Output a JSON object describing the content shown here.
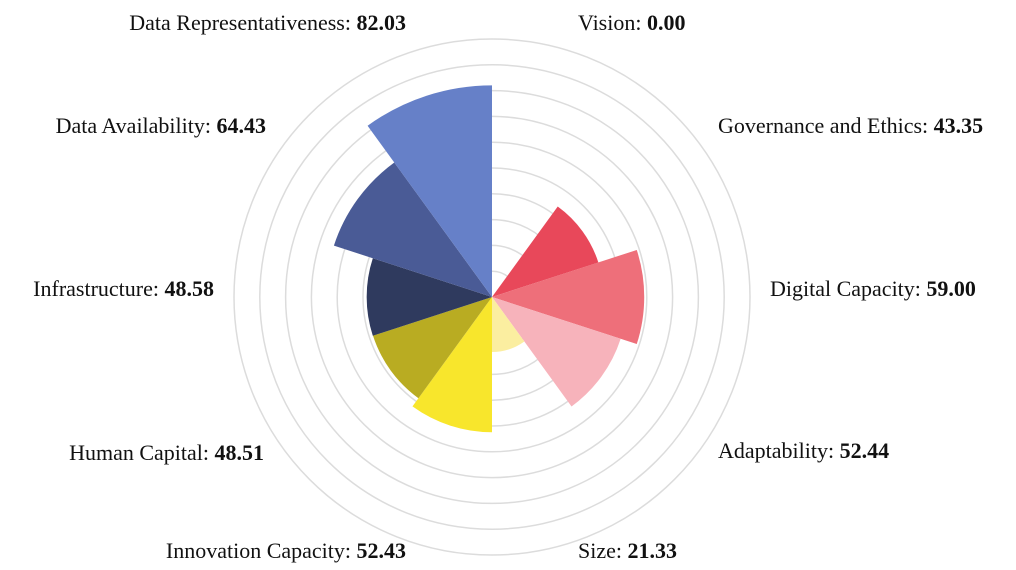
{
  "chart_data": {
    "type": "polar-area",
    "categories": [
      "Vision:",
      "Governance and Ethics:",
      "Digital Capacity:",
      "Adaptability:",
      "Size:",
      "Innovation Capacity:",
      "Human Capital:",
      "Infrastructure:",
      "Data Availability:",
      "Data Representativeness:"
    ],
    "values": [
      0,
      43.35,
      59,
      52.44,
      21.33,
      52.43,
      48.51,
      48.58,
      64.43,
      82.03
    ],
    "value_labels": [
      "0.00",
      "43.35",
      "59.00",
      "52.44",
      "21.33",
      "52.43",
      "48.51",
      "48.58",
      "64.43",
      "82.03"
    ],
    "colors": [
      "#f2a0a8",
      "#e8485a",
      "#ee6f7a",
      "#f7b3bb",
      "#fbeea0",
      "#f8e62c",
      "#b9ac22",
      "#2f3a5e",
      "#4a5b96",
      "#6680c8"
    ],
    "rlim": [
      0,
      100
    ],
    "rticks": [
      10,
      20,
      30,
      40,
      50,
      60,
      70,
      80,
      90,
      100
    ],
    "grid": true
  }
}
